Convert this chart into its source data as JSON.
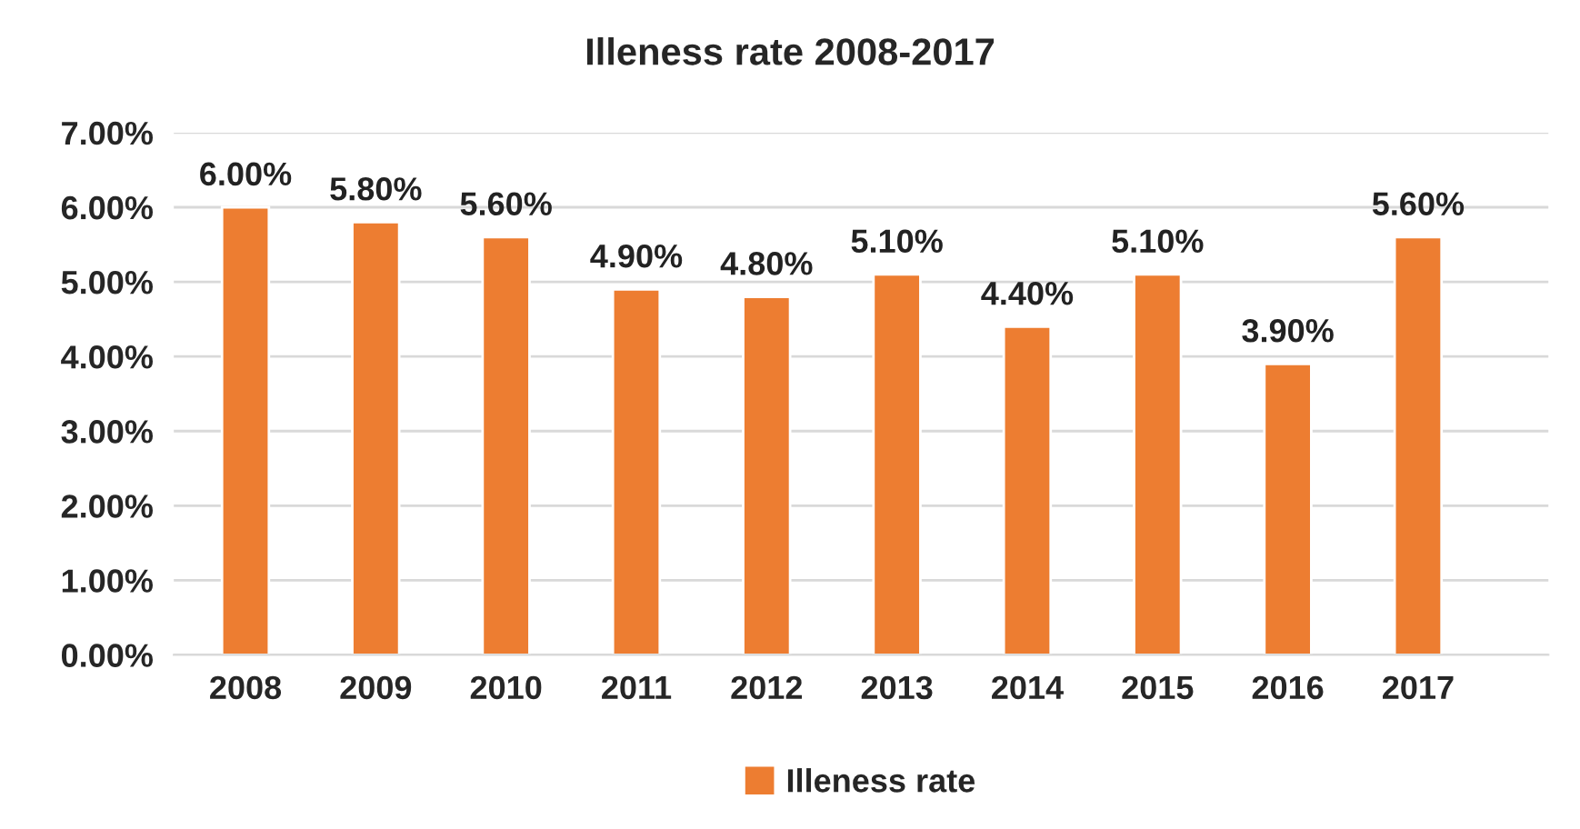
{
  "chart_data": {
    "type": "bar",
    "title": "Illeness rate 2008-2017",
    "categories": [
      "2008",
      "2009",
      "2010",
      "2011",
      "2012",
      "2013",
      "2014",
      "2015",
      "2016",
      "2017"
    ],
    "series": [
      {
        "name": "Illeness rate",
        "color": "#ed7d31",
        "values": [
          6.0,
          5.8,
          5.6,
          4.9,
          4.8,
          5.1,
          4.4,
          5.1,
          3.9,
          5.6
        ],
        "value_labels": [
          "6.00%",
          "5.80%",
          "5.60%",
          "4.90%",
          "4.80%",
          "5.10%",
          "4.40%",
          "5.10%",
          "3.90%",
          "5.60%"
        ]
      }
    ],
    "ylim": [
      0,
      7
    ],
    "yticks": [
      {
        "value": 0,
        "label": "0.00%"
      },
      {
        "value": 1,
        "label": "1.00%"
      },
      {
        "value": 2,
        "label": "2.00%"
      },
      {
        "value": 3,
        "label": "3.00%"
      },
      {
        "value": 4,
        "label": "4.00%"
      },
      {
        "value": 5,
        "label": "5.00%"
      },
      {
        "value": 6,
        "label": "6.00%"
      },
      {
        "value": 7,
        "label": "7.00%"
      }
    ],
    "grid": "y",
    "legend": "bottom"
  }
}
